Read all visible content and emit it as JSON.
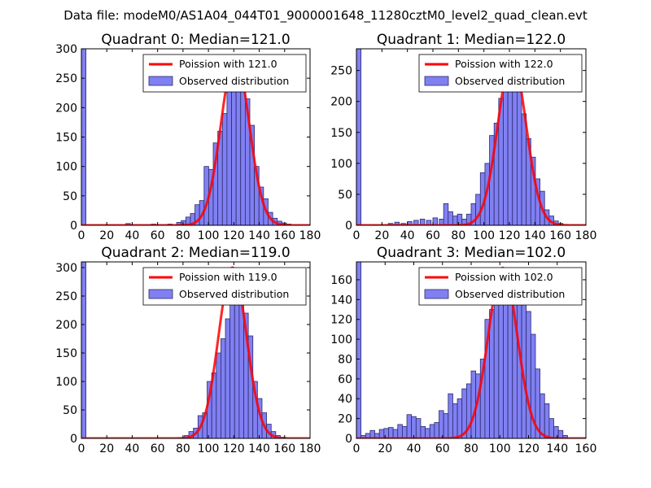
{
  "figure_title": "Data file: modeM0/AS1A04_044T01_9000001648_11280cztM0_level2_quad_clean.evt",
  "colors": {
    "bar_fill": "#8080f2",
    "bar_edge": "#2a2a6e",
    "curve": "#ff0000",
    "axis": "#000000",
    "background": "#ffffff"
  },
  "chart_data": [
    {
      "type": "bar",
      "title": "Quadrant 0: Median=121.0",
      "xlim": [
        0,
        180
      ],
      "ylim": [
        0,
        300
      ],
      "xticks": [
        0,
        20,
        40,
        60,
        80,
        100,
        120,
        140,
        160,
        180
      ],
      "yticks": [
        0,
        50,
        100,
        150,
        200,
        250,
        300
      ],
      "legend": {
        "location": "top-right",
        "curve_label": "Poission with 121.0",
        "bars_label": "Observed distribution"
      },
      "bin_width": 3.6,
      "bins": [
        [
          0,
          300
        ],
        [
          35,
          3
        ],
        [
          55,
          2
        ],
        [
          68,
          2
        ],
        [
          75,
          5
        ],
        [
          78.6,
          8
        ],
        [
          82.2,
          14
        ],
        [
          85.8,
          20
        ],
        [
          89.4,
          35
        ],
        [
          93,
          42
        ],
        [
          96.6,
          100
        ],
        [
          100.2,
          95
        ],
        [
          103.8,
          140
        ],
        [
          107.4,
          160
        ],
        [
          111,
          190
        ],
        [
          114.6,
          260
        ],
        [
          118.2,
          255
        ],
        [
          121.8,
          290
        ],
        [
          125.4,
          270
        ],
        [
          129,
          215
        ],
        [
          132.6,
          170
        ],
        [
          136.2,
          100
        ],
        [
          139.8,
          65
        ],
        [
          143.4,
          45
        ],
        [
          147,
          22
        ],
        [
          150.6,
          12
        ],
        [
          154.2,
          7
        ],
        [
          157.8,
          4
        ],
        [
          161.4,
          2
        ]
      ],
      "poisson_mean": 121.0,
      "poisson_peak": 288
    },
    {
      "type": "bar",
      "title": "Quadrant 1: Median=122.0",
      "xlim": [
        0,
        180
      ],
      "ylim": [
        0,
        285
      ],
      "xticks": [
        0,
        20,
        40,
        60,
        80,
        100,
        120,
        140,
        160,
        180
      ],
      "yticks": [
        0,
        50,
        100,
        150,
        200,
        250
      ],
      "legend": {
        "location": "top-right",
        "curve_label": "Poission with 122.0",
        "bars_label": "Observed distribution"
      },
      "bin_width": 3.6,
      "bins": [
        [
          0,
          285
        ],
        [
          25,
          3
        ],
        [
          30,
          5
        ],
        [
          35,
          3
        ],
        [
          40,
          6
        ],
        [
          45,
          8
        ],
        [
          50,
          10
        ],
        [
          55,
          8
        ],
        [
          60,
          12
        ],
        [
          65,
          10
        ],
        [
          68.4,
          35
        ],
        [
          72,
          22
        ],
        [
          75.6,
          15
        ],
        [
          79.2,
          18
        ],
        [
          82.8,
          10
        ],
        [
          86.4,
          18
        ],
        [
          90,
          35
        ],
        [
          93.6,
          50
        ],
        [
          97.2,
          85
        ],
        [
          100.8,
          100
        ],
        [
          104.4,
          145
        ],
        [
          108,
          165
        ],
        [
          111.6,
          205
        ],
        [
          115.2,
          245
        ],
        [
          118.8,
          250
        ],
        [
          122.4,
          270
        ],
        [
          126,
          265
        ],
        [
          129.6,
          180
        ],
        [
          133.2,
          140
        ],
        [
          136.8,
          110
        ],
        [
          140.4,
          75
        ],
        [
          144,
          55
        ],
        [
          147.6,
          25
        ],
        [
          151.2,
          15
        ],
        [
          154.8,
          7
        ],
        [
          158.4,
          3
        ]
      ],
      "poisson_mean": 122.0,
      "poisson_peak": 270
    },
    {
      "type": "bar",
      "title": "Quadrant 2: Median=119.0",
      "xlim": [
        0,
        180
      ],
      "ylim": [
        0,
        310
      ],
      "xticks": [
        0,
        20,
        40,
        60,
        80,
        100,
        120,
        140,
        160,
        180
      ],
      "yticks": [
        0,
        50,
        100,
        150,
        200,
        250,
        300
      ],
      "legend": {
        "location": "top-right",
        "curve_label": "Poission with 119.0",
        "bars_label": "Observed distribution"
      },
      "bin_width": 3.6,
      "bins": [
        [
          0,
          310
        ],
        [
          81,
          5
        ],
        [
          84.6,
          12
        ],
        [
          88.2,
          18
        ],
        [
          91.8,
          40
        ],
        [
          95.4,
          45
        ],
        [
          99,
          100
        ],
        [
          102.6,
          115
        ],
        [
          106.2,
          150
        ],
        [
          109.8,
          175
        ],
        [
          113.4,
          210
        ],
        [
          117,
          270
        ],
        [
          120.6,
          285
        ],
        [
          124.2,
          270
        ],
        [
          127.8,
          220
        ],
        [
          131.4,
          180
        ],
        [
          135,
          100
        ],
        [
          138.6,
          70
        ],
        [
          142.2,
          45
        ],
        [
          145.8,
          25
        ],
        [
          149.4,
          12
        ],
        [
          153,
          5
        ],
        [
          156.6,
          2
        ]
      ],
      "poisson_mean": 119.0,
      "poisson_peak": 300
    },
    {
      "type": "bar",
      "title": "Quadrant 3: Median=102.0",
      "xlim": [
        0,
        160
      ],
      "ylim": [
        0,
        178
      ],
      "xticks": [
        0,
        20,
        40,
        60,
        80,
        100,
        120,
        140,
        160
      ],
      "yticks": [
        0,
        20,
        40,
        60,
        80,
        100,
        120,
        140,
        160
      ],
      "legend": {
        "location": "top-right",
        "curve_label": "Poission with 102.0",
        "bars_label": "Observed distribution"
      },
      "bin_width": 3.2,
      "bins": [
        [
          0,
          178
        ],
        [
          3.2,
          3
        ],
        [
          6.4,
          5
        ],
        [
          9.6,
          8
        ],
        [
          12.8,
          5
        ],
        [
          16,
          9
        ],
        [
          19.2,
          10
        ],
        [
          22.4,
          11
        ],
        [
          25.6,
          9
        ],
        [
          28.8,
          14
        ],
        [
          32,
          12
        ],
        [
          35.2,
          24
        ],
        [
          38.4,
          22
        ],
        [
          41.6,
          20
        ],
        [
          44.8,
          12
        ],
        [
          48,
          10
        ],
        [
          51.2,
          14
        ],
        [
          54.4,
          16
        ],
        [
          57.6,
          28
        ],
        [
          60.8,
          25
        ],
        [
          64,
          45
        ],
        [
          67.2,
          35
        ],
        [
          70.4,
          40
        ],
        [
          73.6,
          50
        ],
        [
          76.8,
          55
        ],
        [
          80,
          68
        ],
        [
          83.2,
          65
        ],
        [
          86.4,
          80
        ],
        [
          89.6,
          120
        ],
        [
          92.8,
          130
        ],
        [
          96,
          160
        ],
        [
          99.2,
          150
        ],
        [
          102.4,
          170
        ],
        [
          105.6,
          148
        ],
        [
          108.8,
          165
        ],
        [
          112,
          135
        ],
        [
          115.2,
          140
        ],
        [
          118.4,
          128
        ],
        [
          121.6,
          105
        ],
        [
          124.8,
          70
        ],
        [
          128,
          45
        ],
        [
          131.2,
          35
        ],
        [
          134.4,
          20
        ],
        [
          137.6,
          12
        ],
        [
          140.8,
          8
        ],
        [
          144,
          3
        ]
      ],
      "poisson_mean": 102.0,
      "poisson_peak": 172
    }
  ]
}
